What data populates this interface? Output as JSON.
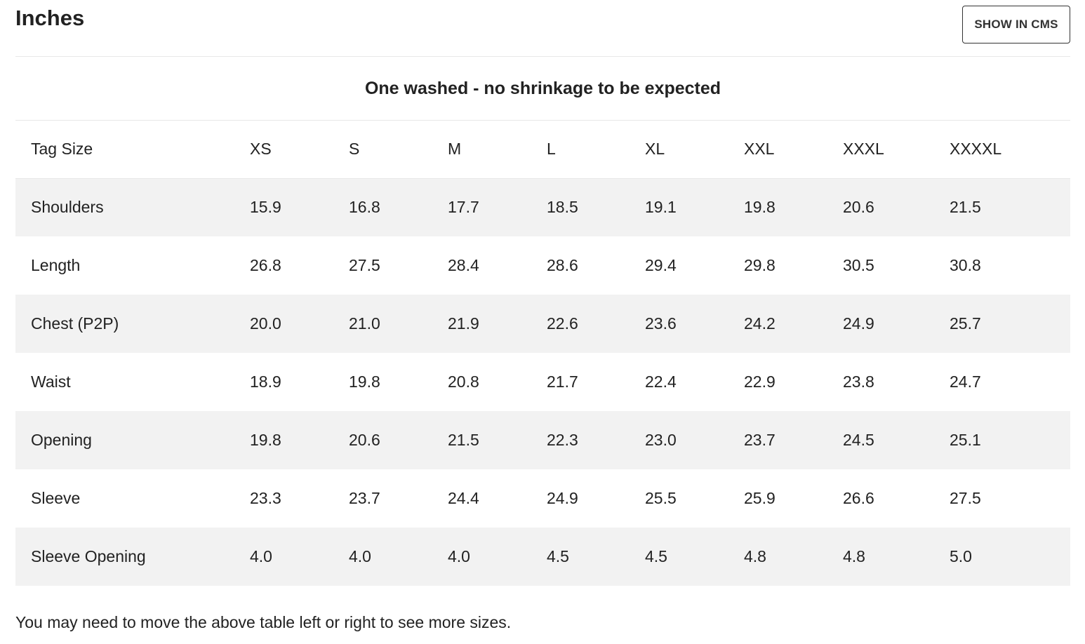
{
  "header": {
    "title": "Inches",
    "cms_button_label": "SHOW IN CMS"
  },
  "caption": "One washed - no shrinkage to be expected",
  "table": {
    "columns": [
      "Tag Size",
      "XS",
      "S",
      "M",
      "L",
      "XL",
      "XXL",
      "XXXL",
      "XXXXL"
    ],
    "rows": [
      {
        "label": "Shoulders",
        "values": [
          "15.9",
          "16.8",
          "17.7",
          "18.5",
          "19.1",
          "19.8",
          "20.6",
          "21.5"
        ]
      },
      {
        "label": "Length",
        "values": [
          "26.8",
          "27.5",
          "28.4",
          "28.6",
          "29.4",
          "29.8",
          "30.5",
          "30.8"
        ]
      },
      {
        "label": "Chest (P2P)",
        "values": [
          "20.0",
          "21.0",
          "21.9",
          "22.6",
          "23.6",
          "24.2",
          "24.9",
          "25.7"
        ]
      },
      {
        "label": "Waist",
        "values": [
          "18.9",
          "19.8",
          "20.8",
          "21.7",
          "22.4",
          "22.9",
          "23.8",
          "24.7"
        ]
      },
      {
        "label": "Opening",
        "values": [
          "19.8",
          "20.6",
          "21.5",
          "22.3",
          "23.0",
          "23.7",
          "24.5",
          "25.1"
        ]
      },
      {
        "label": "Sleeve",
        "values": [
          "23.3",
          "23.7",
          "24.4",
          "24.9",
          "25.5",
          "25.9",
          "26.6",
          "27.5"
        ]
      },
      {
        "label": "Sleeve Opening",
        "values": [
          "4.0",
          "4.0",
          "4.0",
          "4.5",
          "4.5",
          "4.8",
          "4.8",
          "5.0"
        ]
      }
    ]
  },
  "footnote": "You may need to move the above table left or right to see more sizes."
}
